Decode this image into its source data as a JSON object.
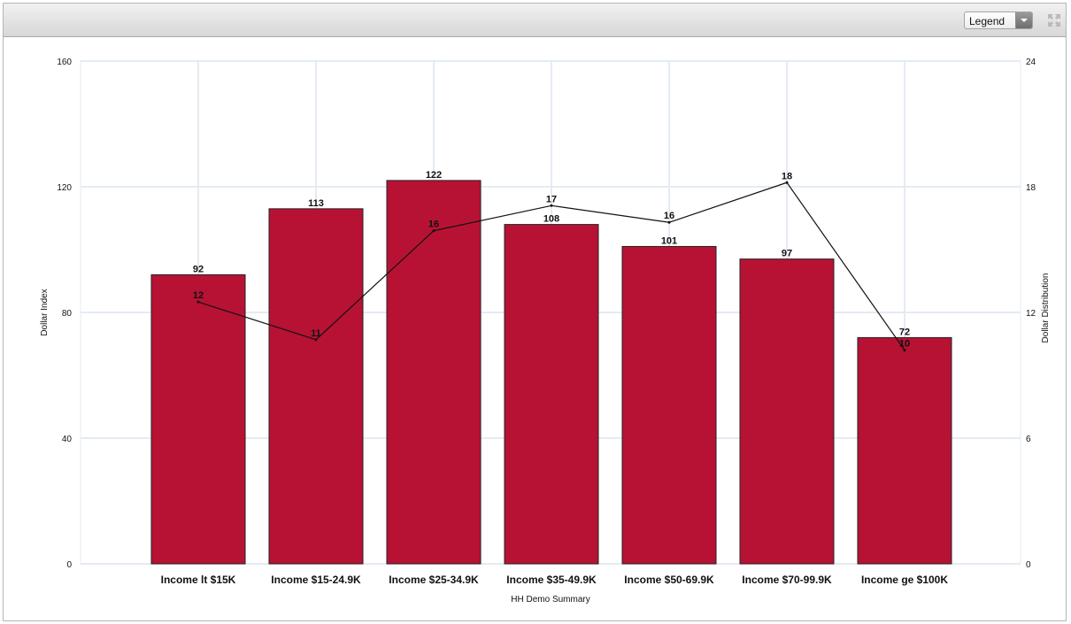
{
  "toolbar": {
    "legend_label": "Legend",
    "expand_icon": "expand-arrows-icon"
  },
  "chart_data": {
    "type": "bar",
    "categories": [
      "Income lt $15K",
      "Income $15-24.9K",
      "Income $25-34.9K",
      "Income $35-49.9K",
      "Income $50-69.9K",
      "Income $70-99.9K",
      "Income ge $100K"
    ],
    "series": [
      {
        "type": "bar",
        "axis": "left",
        "color": "#b71234",
        "values": [
          92,
          113,
          122,
          108,
          101,
          97,
          72
        ]
      },
      {
        "type": "line",
        "axis": "right",
        "color": "#111111",
        "values": [
          12.5,
          10.7,
          15.9,
          17.1,
          16.3,
          18.2,
          10.2
        ],
        "labels": [
          "12",
          "11",
          "16",
          "17",
          "16",
          "18",
          "10"
        ]
      }
    ],
    "xlabel": "HH Demo Summary",
    "ylabel": "Dollar Index",
    "y2label": "Dollar Distribution",
    "ylim": [
      0,
      160
    ],
    "y2lim": [
      0,
      24
    ],
    "yticks": [
      "0",
      "40",
      "80",
      "120",
      "160"
    ],
    "y2ticks": [
      "0",
      "6",
      "12",
      "18",
      "24"
    ],
    "grid": true,
    "gridColor": "#e4ebf3"
  }
}
